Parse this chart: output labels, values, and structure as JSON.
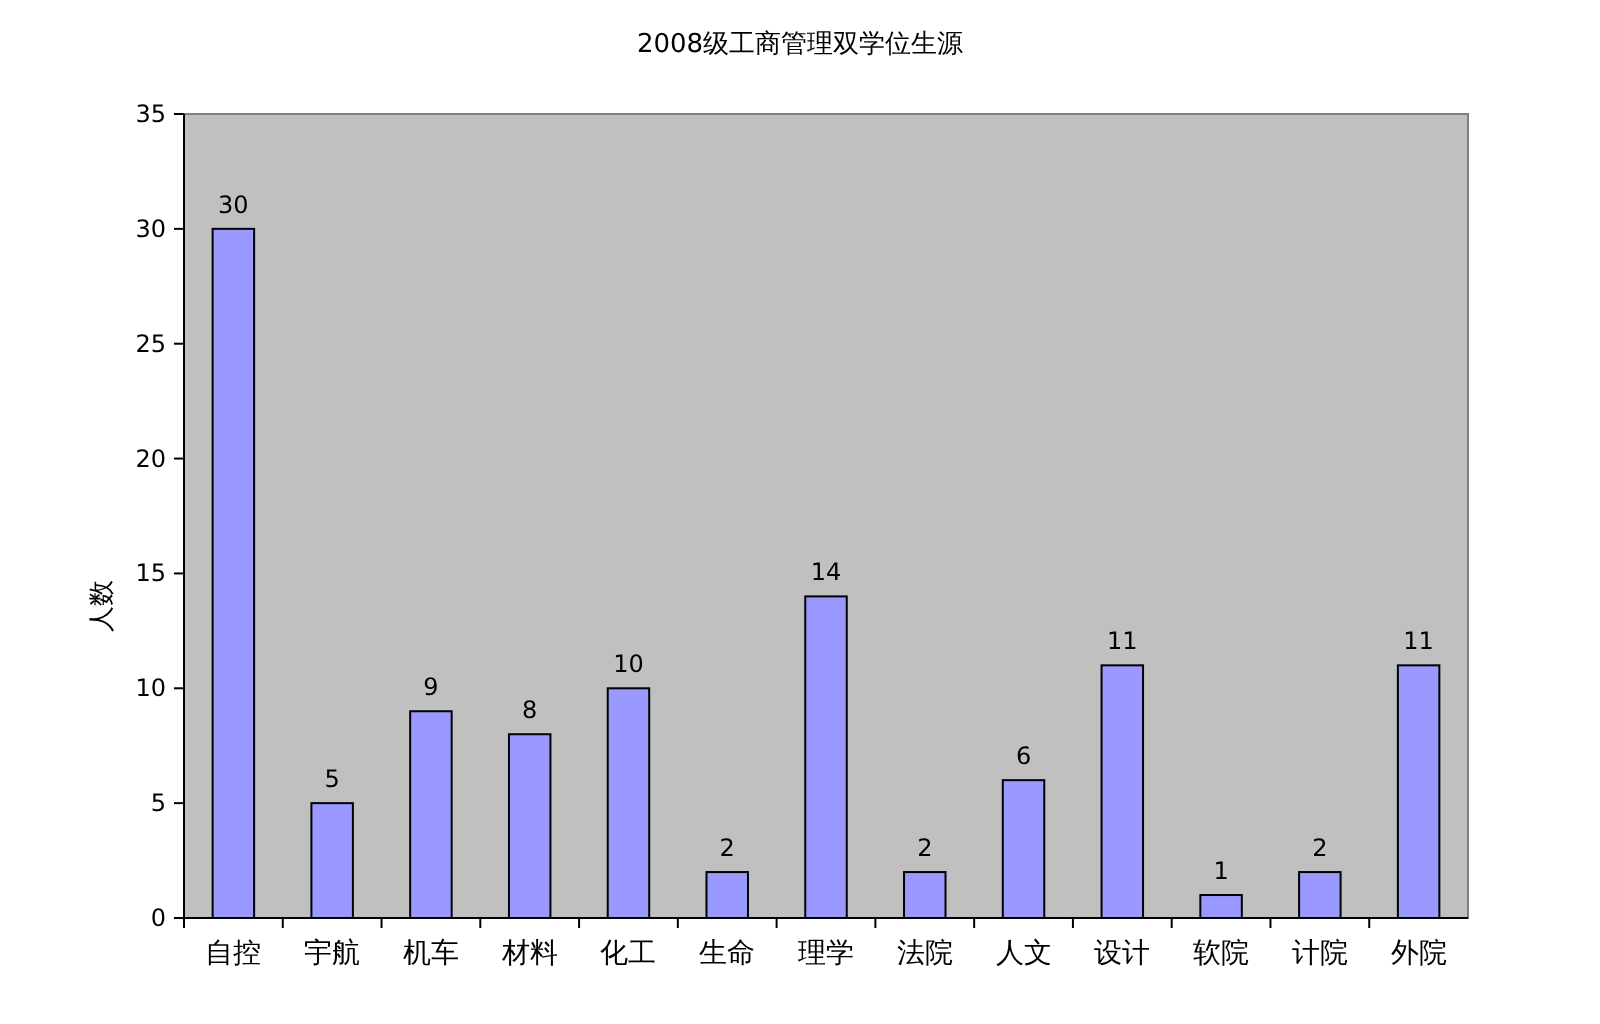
{
  "chart_data": {
    "type": "bar",
    "title": "2008级工商管理双学位生源",
    "ylabel": "人数",
    "categories": [
      "自控",
      "宇航",
      "机车",
      "材料",
      "化工",
      "生命",
      "理学",
      "法院",
      "人文",
      "设计",
      "软院",
      "计院",
      "外院"
    ],
    "values": [
      30,
      5,
      9,
      8,
      10,
      2,
      14,
      2,
      6,
      11,
      1,
      2,
      11
    ],
    "color": "#9999ff",
    "ylim": [
      0,
      35
    ],
    "yticks": [
      0,
      5,
      10,
      15,
      20,
      25,
      30,
      35
    ],
    "data_labels": true
  }
}
